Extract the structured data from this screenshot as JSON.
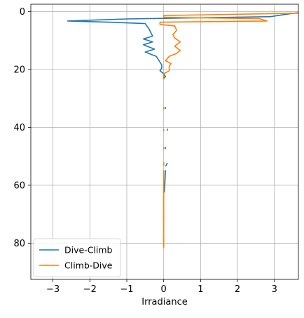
{
  "chart_data": {
    "type": "line",
    "title": "",
    "xlabel": "Irradiance",
    "ylabel": "",
    "xlim": [
      -3.6,
      3.65
    ],
    "ylim": [
      92.5,
      -2.5
    ],
    "y_inverted": true,
    "xticks": [
      -3,
      -2,
      -1,
      0,
      1,
      2,
      3
    ],
    "yticks": [
      0,
      20,
      40,
      60,
      80
    ],
    "grid": true,
    "legend_position": "lower-left",
    "series": [
      {
        "name": "Dive-Climb",
        "color": "#1f77b4",
        "segments": [
          [
            [
              3.65,
              0.4
            ],
            [
              3.3,
              1.0
            ],
            [
              2.9,
              1.8
            ],
            [
              -1.0,
              2.6
            ],
            [
              -2.6,
              3.3
            ],
            [
              -1.5,
              3.7
            ],
            [
              -0.5,
              4.2
            ],
            [
              -0.4,
              6.0
            ],
            [
              -0.3,
              8.5
            ],
            [
              -0.55,
              9.5
            ],
            [
              -0.3,
              10.5
            ],
            [
              -0.55,
              11.5
            ],
            [
              -0.25,
              13.0
            ],
            [
              -0.5,
              14.0
            ],
            [
              -0.2,
              15.5
            ],
            [
              -0.15,
              16.5
            ],
            [
              -0.1,
              17.5
            ],
            [
              -0.05,
              18.5
            ],
            [
              -0.05,
              19.5
            ],
            [
              -0.1,
              20.5
            ],
            [
              0.0,
              21.5
            ],
            [
              0.05,
              22.5
            ],
            [
              0.0,
              23.2
            ]
          ],
          [
            [
              0.05,
              33.0
            ],
            [
              0.05,
              33.6
            ]
          ],
          [
            [
              0.1,
              40.5
            ],
            [
              0.1,
              41.2
            ]
          ],
          [
            [
              0.05,
              46.8
            ],
            [
              0.05,
              47.5
            ]
          ],
          [
            [
              0.1,
              52.3
            ],
            [
              0.05,
              53.5
            ]
          ],
          [
            [
              0.05,
              54.8
            ],
            [
              0.02,
              62.5
            ]
          ],
          [
            [
              0.0,
              64.0
            ],
            [
              0.0,
              72.5
            ]
          ],
          [
            [
              0.0,
              78.0
            ],
            [
              0.0,
              81.5
            ]
          ]
        ]
      },
      {
        "name": "Climb-Dive",
        "color": "#ff7f0e",
        "segments": [
          [
            [
              3.65,
              0.6
            ],
            [
              0.0,
              1.4
            ],
            [
              0.0,
              2.0
            ],
            [
              2.6,
              2.5
            ],
            [
              2.8,
              3.3
            ],
            [
              -0.1,
              3.7
            ],
            [
              -0.1,
              4.5
            ],
            [
              0.3,
              5.0
            ],
            [
              0.35,
              6.5
            ],
            [
              0.25,
              8.0
            ],
            [
              0.3,
              9.2
            ],
            [
              0.45,
              10.5
            ],
            [
              0.3,
              12.0
            ],
            [
              0.45,
              13.5
            ],
            [
              0.35,
              14.5
            ],
            [
              0.15,
              15.5
            ],
            [
              0.05,
              17.0
            ],
            [
              0.2,
              18.0
            ],
            [
              0.15,
              19.0
            ],
            [
              0.15,
              20.5
            ],
            [
              0.0,
              21.5
            ],
            [
              0.0,
              22.5
            ],
            [
              0.0,
              23.5
            ]
          ],
          [
            [
              0.0,
              33.0
            ],
            [
              0.0,
              33.8
            ]
          ],
          [
            [
              0.0,
              40.6
            ],
            [
              0.0,
              41.4
            ]
          ],
          [
            [
              0.0,
              46.8
            ],
            [
              0.0,
              47.6
            ]
          ],
          [
            [
              0.0,
              52.0
            ],
            [
              0.0,
              53.2
            ]
          ],
          [
            [
              0.0,
              54.8
            ],
            [
              0.0,
              81.5
            ]
          ]
        ]
      }
    ]
  }
}
